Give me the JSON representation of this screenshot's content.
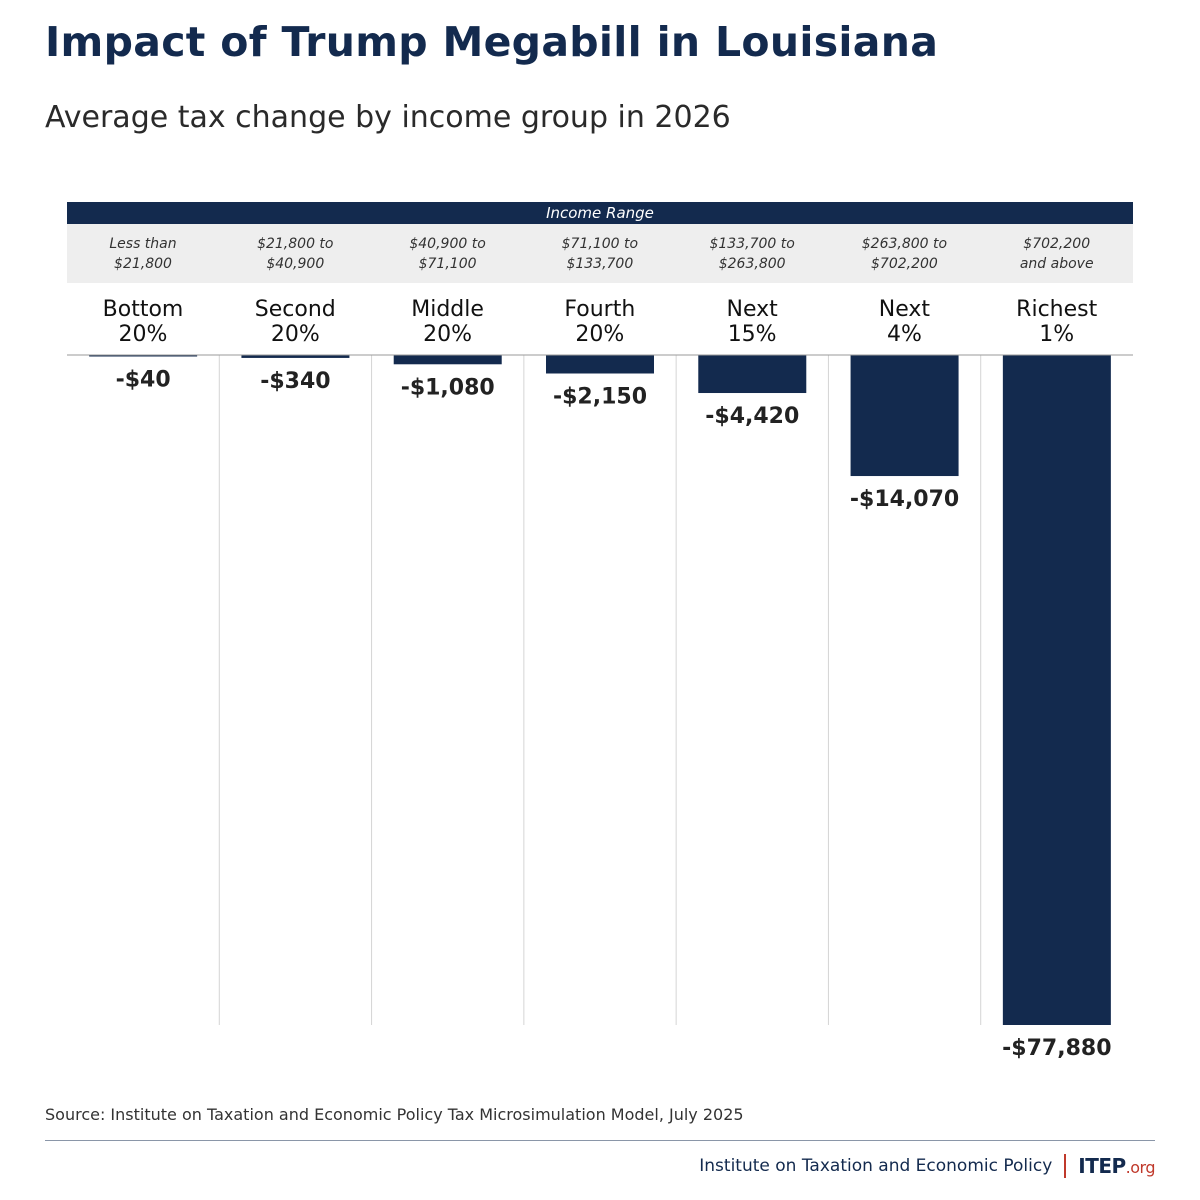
{
  "title": "Impact of Trump Megabill in Louisiana",
  "subtitle": "Average tax change by income group in 2026",
  "range_header": "Income Range",
  "source": "Source: Institute on Taxation and Economic Policy Tax Microsimulation Model, July 2025",
  "footer": {
    "org_name": "Institute on Taxation and Economic Policy",
    "logo_main": "ITEP",
    "logo_suffix": ".org"
  },
  "colors": {
    "bar": "#132a4e",
    "header": "#132a4e",
    "band": "#eeeeee",
    "accent": "#c0392b"
  },
  "chart_data": {
    "type": "bar",
    "categories": [
      "Bottom 20%",
      "Second 20%",
      "Middle 20%",
      "Fourth 20%",
      "Next 15%",
      "Next 4%",
      "Richest 1%"
    ],
    "category_lines": [
      [
        "Bottom",
        "20%"
      ],
      [
        "Second",
        "20%"
      ],
      [
        "Middle",
        "20%"
      ],
      [
        "Fourth",
        "20%"
      ],
      [
        "Next",
        "15%"
      ],
      [
        "Next",
        "4%"
      ],
      [
        "Richest",
        "1%"
      ]
    ],
    "income_ranges": [
      [
        "Less than",
        "$21,800"
      ],
      [
        "$21,800 to",
        "$40,900"
      ],
      [
        "$40,900 to",
        "$71,100"
      ],
      [
        "$71,100 to",
        "$133,700"
      ],
      [
        "$133,700 to",
        "$263,800"
      ],
      [
        "$263,800 to",
        "$702,200"
      ],
      [
        "$702,200",
        "and above"
      ]
    ],
    "values": [
      -40,
      -340,
      -1080,
      -2150,
      -4420,
      -14070,
      -77880
    ],
    "value_labels": [
      "-$40",
      "-$340",
      "-$1,080",
      "-$2,150",
      "-$4,420",
      "-$14,070",
      "-$77,880"
    ],
    "ylim": [
      -77880,
      0
    ],
    "grid": false
  }
}
